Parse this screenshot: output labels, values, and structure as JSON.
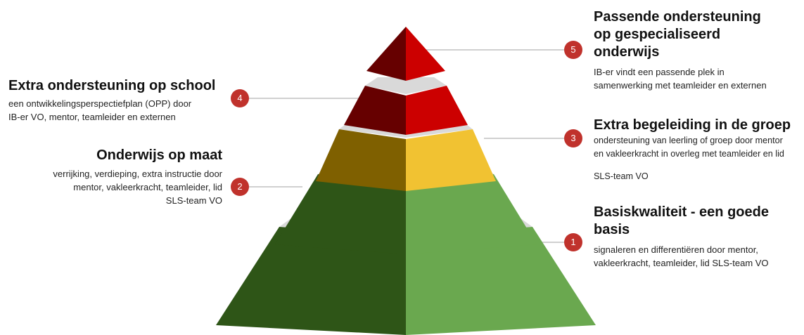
{
  "colors": {
    "gap": "#d9d9d9",
    "badge": "#c0322c",
    "connector": "#b5b5b5"
  },
  "levels": [
    {
      "number": "1",
      "title": "Basiskwaliteit - een goede basis",
      "title_lines": [
        "Basiskwaliteit - een goede",
        "basis"
      ],
      "description_lines": [
        "signaleren en differentiëren door mentor,",
        "vakleerkracht, teamleider, lid SLS-team VO"
      ],
      "color_left": "#2e5517",
      "color_right": "#6aa84f"
    },
    {
      "number": "2",
      "title": "Onderwijs op maat",
      "description_lines": [
        "verrijking, verdieping, extra instructie door",
        "mentor, vakleerkracht, teamleider, lid",
        "SLS-team VO"
      ],
      "color_left": "#2e5517",
      "color_right": "#6aa84f"
    },
    {
      "number": "3",
      "title": "Extra begeleiding in de groep",
      "description_lines": [
        "ondersteuning van leerling of groep door mentor",
        "en vakleerkracht in overleg met teamleider en lid",
        "SLS-team VO"
      ],
      "color_left": "#7f6000",
      "color_right": "#f1c232"
    },
    {
      "number": "4",
      "title": "Extra ondersteuning op school",
      "description_lines": [
        "een ontwikkelingsperspectiefplan (OPP) door",
        "IB-er VO, mentor, teamleider en externen"
      ],
      "color_left": "#660000",
      "color_right": "#cc0000"
    },
    {
      "number": "5",
      "title": "Passende ondersteuning op gespecialiseerd onderwijs",
      "title_lines": [
        "Passende ondersteuning",
        "op gespecialiseerd",
        "onderwijs"
      ],
      "description_lines": [
        "IB-er vindt een passende plek in",
        "samenwerking met teamleider en externen"
      ],
      "color_left": "#660000",
      "color_right": "#cc0000"
    }
  ]
}
